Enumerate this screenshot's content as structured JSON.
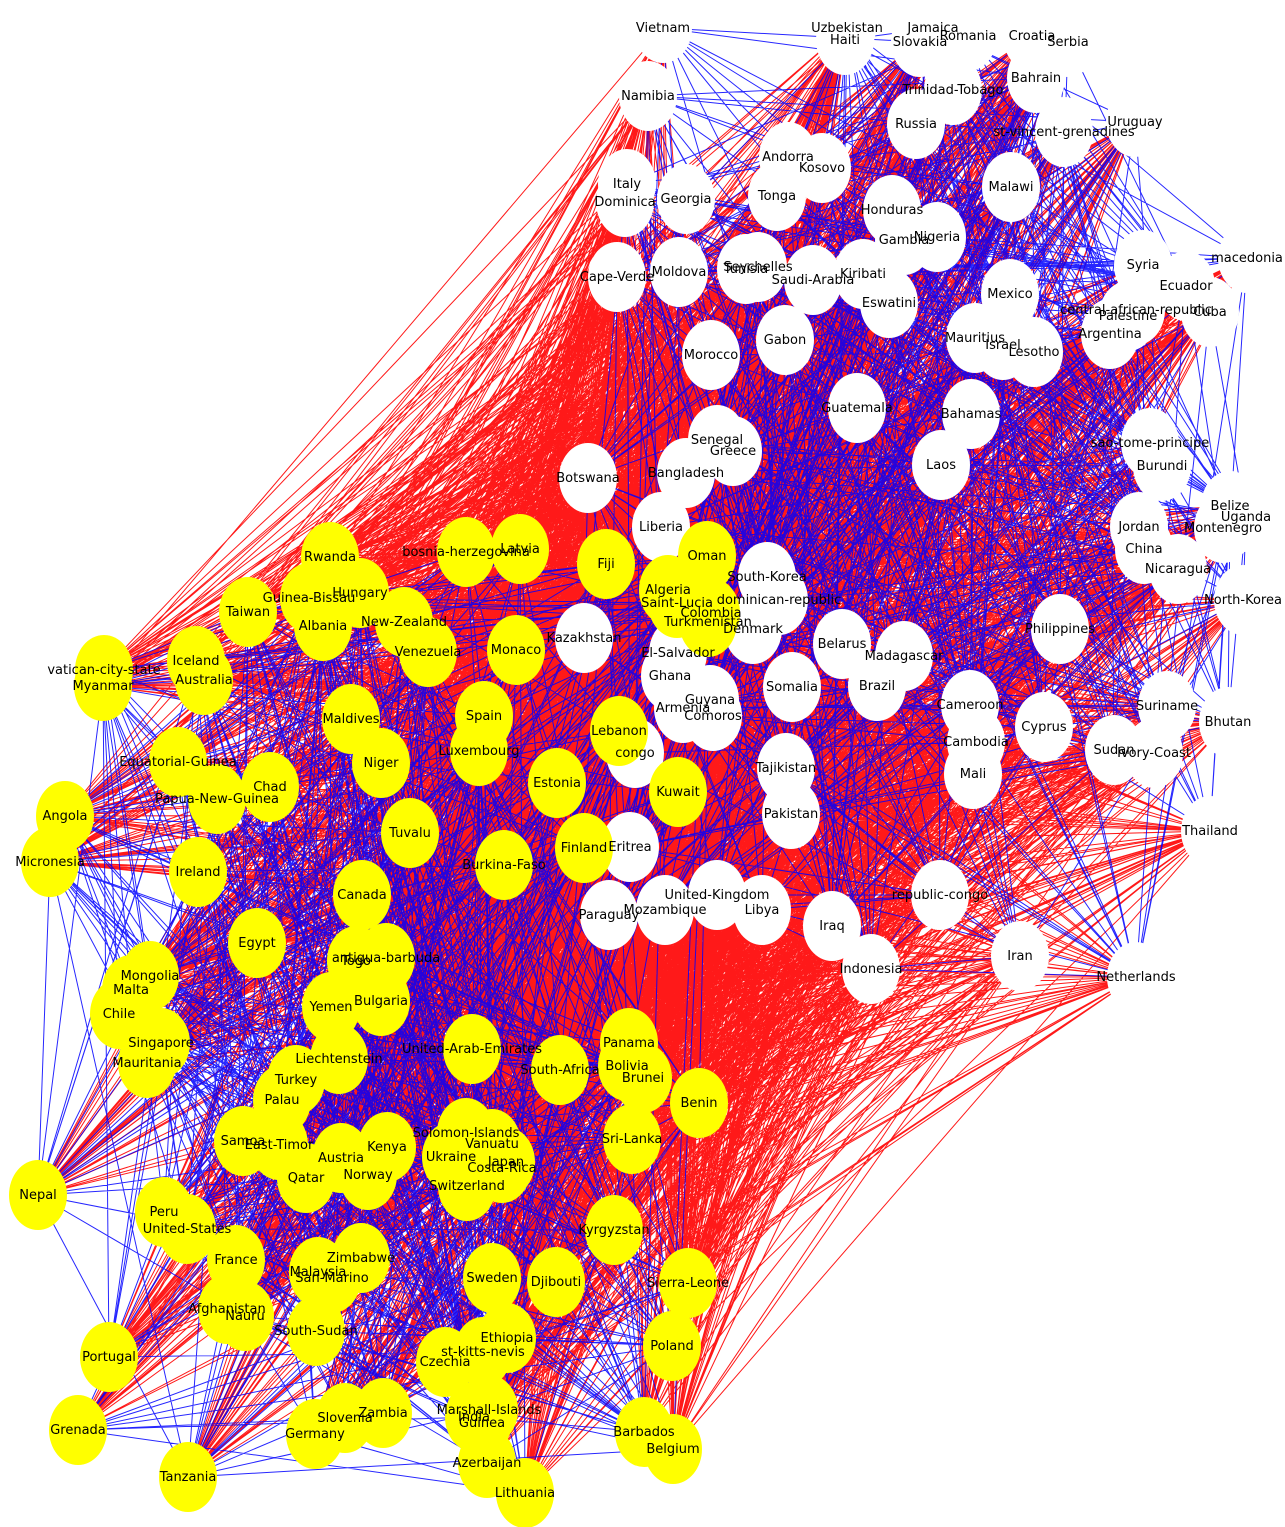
{
  "colors": {
    "background": "#ffffff",
    "group_a_fill": "#ffff00",
    "group_b_fill": "#ffffff",
    "inter_group_edge": "#ff0000",
    "intra_group_edge": "#0000ff",
    "label": "#000000"
  },
  "graph": {
    "group_a": [
      "Rwanda",
      "bosnia-herzegovina",
      "Latvia",
      "Fiji",
      "Oman",
      "Algeria",
      "Saint-Lucia",
      "Colombia",
      "Turkmenistan",
      "Guinea-Bissau",
      "Hungary",
      "Taiwan",
      "New-Zealand",
      "Albania",
      "Venezuela",
      "Monaco",
      "vatican-city-state",
      "Myanmar",
      "Iceland",
      "Australia",
      "Maldives",
      "Spain",
      "Luxembourg",
      "Lebanon",
      "Niger",
      "Equatorial-Guinea",
      "Chad",
      "Papua-New-Guinea",
      "Kuwait",
      "Estonia",
      "Angola",
      "Tuvalu",
      "Finland",
      "Micronesia",
      "Ireland",
      "Burkina-Faso",
      "Canada",
      "Egypt",
      "Togo",
      "antigua-barbuda",
      "Mongolia",
      "Malta",
      "Bulgaria",
      "Chile",
      "Yemen",
      "Singapore",
      "United-Arab-Emirates",
      "Panama",
      "Mauritania",
      "Liechtenstein",
      "South-Africa",
      "Bolivia",
      "Brunei",
      "Turkey",
      "Benin",
      "Palau",
      "Solomon-Islands",
      "Samoa",
      "East-Timor",
      "Kenya",
      "Vanuatu",
      "Sri-Lanka",
      "Austria",
      "Ukraine",
      "Japan",
      "Qatar",
      "Norway",
      "Costa-Rica",
      "Nepal",
      "Switzerland",
      "Peru",
      "United-States",
      "Kyrgyzstan",
      "Zimbabwe",
      "France",
      "Malaysia",
      "San-Marino",
      "Sweden",
      "Djibouti",
      "Sierra-Leone",
      "Afghanistan",
      "Nauru",
      "South-Sudan",
      "Ethiopia",
      "st-kitts-nevis",
      "Poland",
      "Portugal",
      "Czechia",
      "Marshall-Islands",
      "India",
      "Guinea",
      "Slovenia",
      "Zambia",
      "Barbados",
      "Grenada",
      "Germany",
      "Belgium",
      "Azerbaijan",
      "Tanzania",
      "Lithuania"
    ],
    "group_b": [
      "Vietnam",
      "Uzbekistan",
      "Haiti",
      "Jamaica",
      "Slovakia",
      "Romania",
      "Croatia",
      "Serbia",
      "Bahrain",
      "Namibia",
      "Trinidad-Tobago",
      "Uruguay",
      "Russia",
      "st-vincent-grenadines",
      "Andorra",
      "Kosovo",
      "Italy",
      "Dominica",
      "Georgia",
      "Tonga",
      "Malawi",
      "Honduras",
      "Gambia",
      "Nigeria",
      "Cape-Verde",
      "Moldova",
      "Seychelles",
      "Tunisia",
      "Saudi-Arabia",
      "Kiribati",
      "Syria",
      "macedonia",
      "Eswatini",
      "Mexico",
      "Ecuador",
      "central-african-republic",
      "Palestine",
      "Cuba",
      "Morocco",
      "Gabon",
      "Mauritius",
      "Israel",
      "Lesotho",
      "Argentina",
      "Guatemala",
      "Bahamas",
      "Senegal",
      "Greece",
      "sao-tome-principe",
      "Laos",
      "Burundi",
      "Bangladesh",
      "Botswana",
      "Belize",
      "Uganda",
      "Liberia",
      "Jordan",
      "Montenegro",
      "China",
      "Nicaragua",
      "South-Korea",
      "dominican-republic",
      "Kazakhstan",
      "North-Korea",
      "Denmark",
      "Philippines",
      "Belarus",
      "Madagascar",
      "El-Salvador",
      "Ghana",
      "Somalia",
      "Brazil",
      "Guyana",
      "Armenia",
      "Comoros",
      "Cameroon",
      "Suriname",
      "Cyprus",
      "Bhutan",
      "Cambodia",
      "Sudan",
      "congo",
      "Tajikistan",
      "Ivory-Coast",
      "Mali",
      "Pakistan",
      "Eritrea",
      "Thailand",
      "United-Kingdom",
      "Mozambique",
      "Libya",
      "Paraguay",
      "republic-congo",
      "Iraq",
      "Iran",
      "Indonesia",
      "Netherlands"
    ]
  }
}
